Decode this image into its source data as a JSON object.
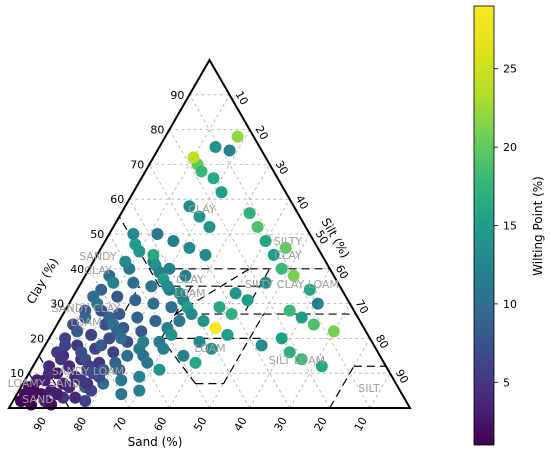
{
  "chart_data": {
    "type": "scatter",
    "subtype": "soil texture ternary diagram",
    "axes": {
      "clay": {
        "label": "Clay (%)",
        "ticks": [
          10,
          20,
          30,
          40,
          50,
          60,
          70,
          80,
          90
        ]
      },
      "silt": {
        "label": "Silt (%)",
        "ticks": [
          10,
          20,
          30,
          40,
          50,
          60,
          70,
          80,
          90
        ]
      },
      "sand": {
        "label": "Sand (%)",
        "ticks": [
          90,
          80,
          70,
          60,
          50,
          40,
          30,
          20,
          10
        ]
      }
    },
    "grid": true,
    "colorbar": {
      "label": "Wilting Point (%)",
      "colormap": "viridis",
      "min": 1,
      "max": 29,
      "ticks": [
        5,
        10,
        15,
        20,
        25
      ],
      "placement": "right"
    },
    "regions": [
      {
        "name": "CLAY",
        "label": "CLAY"
      },
      {
        "name": "SILTY CLAY",
        "label": "SILTY CLAY"
      },
      {
        "name": "SANDY CLAY",
        "label": "SANDY CLAY"
      },
      {
        "name": "CLAY LOAM",
        "label": "CLAY LOAM"
      },
      {
        "name": "SILTY CLAY LOAM",
        "label": "SILTY CLAY LOAM"
      },
      {
        "name": "SANDY CLAY LOAM",
        "label": "SANDY CLAY LOAM"
      },
      {
        "name": "LOAM",
        "label": "LOAM"
      },
      {
        "name": "SILT LOAM",
        "label": "SILT LOAM"
      },
      {
        "name": "SILT",
        "label": "SILT"
      },
      {
        "name": "SANDY LOAM",
        "label": "SANDY LOAM"
      },
      {
        "name": "LOAMY SAND",
        "label": "LOAMY SAND"
      },
      {
        "name": "SAND",
        "label": "SAND"
      }
    ],
    "points": [
      {
        "clay": 3,
        "silt": 4,
        "wp": 2
      },
      {
        "clay": 4,
        "silt": 6,
        "wp": 2
      },
      {
        "clay": 5,
        "silt": 8,
        "wp": 3
      },
      {
        "clay": 6,
        "silt": 3,
        "wp": 2
      },
      {
        "clay": 7,
        "silt": 10,
        "wp": 3
      },
      {
        "clay": 8,
        "silt": 5,
        "wp": 3
      },
      {
        "clay": 9,
        "silt": 12,
        "wp": 4
      },
      {
        "clay": 10,
        "silt": 7,
        "wp": 3
      },
      {
        "clay": 11,
        "silt": 14,
        "wp": 5
      },
      {
        "clay": 12,
        "silt": 9,
        "wp": 4
      },
      {
        "clay": 13,
        "silt": 16,
        "wp": 5
      },
      {
        "clay": 14,
        "silt": 11,
        "wp": 5
      },
      {
        "clay": 15,
        "silt": 6,
        "wp": 4
      },
      {
        "clay": 16,
        "silt": 18,
        "wp": 6
      },
      {
        "clay": 17,
        "silt": 13,
        "wp": 6
      },
      {
        "clay": 18,
        "silt": 8,
        "wp": 5
      },
      {
        "clay": 19,
        "silt": 20,
        "wp": 7
      },
      {
        "clay": 20,
        "silt": 15,
        "wp": 7
      },
      {
        "clay": 21,
        "silt": 10,
        "wp": 6
      },
      {
        "clay": 22,
        "silt": 22,
        "wp": 8
      },
      {
        "clay": 23,
        "silt": 17,
        "wp": 8
      },
      {
        "clay": 24,
        "silt": 12,
        "wp": 7
      },
      {
        "clay": 25,
        "silt": 24,
        "wp": 9
      },
      {
        "clay": 26,
        "silt": 19,
        "wp": 9
      },
      {
        "clay": 27,
        "silt": 14,
        "wp": 8
      },
      {
        "clay": 28,
        "silt": 9,
        "wp": 7
      },
      {
        "clay": 29,
        "silt": 26,
        "wp": 10
      },
      {
        "clay": 30,
        "silt": 21,
        "wp": 10
      },
      {
        "clay": 31,
        "silt": 16,
        "wp": 9
      },
      {
        "clay": 32,
        "silt": 11,
        "wp": 8
      },
      {
        "clay": 34,
        "silt": 23,
        "wp": 11
      },
      {
        "clay": 35,
        "silt": 18,
        "wp": 11
      },
      {
        "clay": 36,
        "silt": 13,
        "wp": 10
      },
      {
        "clay": 38,
        "silt": 25,
        "wp": 12
      },
      {
        "clay": 40,
        "silt": 20,
        "wp": 12
      },
      {
        "clay": 42,
        "silt": 15,
        "wp": 11
      },
      {
        "clay": 44,
        "silt": 27,
        "wp": 13
      },
      {
        "clay": 46,
        "silt": 22,
        "wp": 13
      },
      {
        "clay": 48,
        "silt": 17,
        "wp": 12
      },
      {
        "clay": 50,
        "silt": 12,
        "wp": 11
      },
      {
        "clay": 52,
        "silt": 24,
        "wp": 14
      },
      {
        "clay": 55,
        "silt": 20,
        "wp": 14
      },
      {
        "clay": 58,
        "silt": 16,
        "wp": 13
      },
      {
        "clay": 62,
        "silt": 22,
        "wp": 15
      },
      {
        "clay": 66,
        "silt": 18,
        "wp": 16
      },
      {
        "clay": 70,
        "silt": 12,
        "wp": 20
      },
      {
        "clay": 72,
        "silt": 10,
        "wp": 24
      },
      {
        "clay": 68,
        "silt": 14,
        "wp": 18
      },
      {
        "clay": 75,
        "silt": 14,
        "wp": 14
      },
      {
        "clay": 78,
        "silt": 18,
        "wp": 22
      },
      {
        "clay": 74,
        "silt": 18,
        "wp": 12
      },
      {
        "clay": 56,
        "silt": 32,
        "wp": 17
      },
      {
        "clay": 52,
        "silt": 36,
        "wp": 19
      },
      {
        "clay": 48,
        "silt": 40,
        "wp": 16
      },
      {
        "clay": 46,
        "silt": 46,
        "wp": 20
      },
      {
        "clay": 44,
        "silt": 44,
        "wp": 15
      },
      {
        "clay": 40,
        "silt": 48,
        "wp": 18
      },
      {
        "clay": 38,
        "silt": 52,
        "wp": 21
      },
      {
        "clay": 36,
        "silt": 46,
        "wp": 13
      },
      {
        "clay": 34,
        "silt": 58,
        "wp": 16
      },
      {
        "clay": 30,
        "silt": 62,
        "wp": 12
      },
      {
        "clay": 28,
        "silt": 56,
        "wp": 18
      },
      {
        "clay": 26,
        "silt": 60,
        "wp": 15
      },
      {
        "clay": 24,
        "silt": 64,
        "wp": 19
      },
      {
        "clay": 22,
        "silt": 70,
        "wp": 21
      },
      {
        "clay": 20,
        "silt": 58,
        "wp": 15
      },
      {
        "clay": 18,
        "silt": 54,
        "wp": 13
      },
      {
        "clay": 16,
        "silt": 62,
        "wp": 17
      },
      {
        "clay": 14,
        "silt": 66,
        "wp": 18
      },
      {
        "clay": 12,
        "silt": 72,
        "wp": 16
      },
      {
        "clay": 33,
        "silt": 40,
        "wp": 14
      },
      {
        "clay": 31,
        "silt": 44,
        "wp": 15
      },
      {
        "clay": 29,
        "silt": 38,
        "wp": 16
      },
      {
        "clay": 27,
        "silt": 42,
        "wp": 17
      },
      {
        "clay": 25,
        "silt": 36,
        "wp": 14
      },
      {
        "clay": 23,
        "silt": 40,
        "wp": 29
      },
      {
        "clay": 21,
        "silt": 44,
        "wp": 15
      },
      {
        "clay": 19,
        "silt": 38,
        "wp": 13
      },
      {
        "clay": 17,
        "silt": 42,
        "wp": 14
      },
      {
        "clay": 15,
        "silt": 36,
        "wp": 12
      },
      {
        "clay": 13,
        "silt": 40,
        "wp": 16
      },
      {
        "clay": 11,
        "silt": 32,
        "wp": 14
      },
      {
        "clay": 9,
        "silt": 28,
        "wp": 12
      },
      {
        "clay": 8,
        "silt": 24,
        "wp": 11
      },
      {
        "clay": 7,
        "silt": 20,
        "wp": 10
      },
      {
        "clay": 6,
        "silt": 16,
        "wp": 9
      },
      {
        "clay": 5,
        "silt": 30,
        "wp": 12
      },
      {
        "clay": 4,
        "silt": 26,
        "wp": 11
      },
      {
        "clay": 3,
        "silt": 12,
        "wp": 5
      },
      {
        "clay": 2,
        "silt": 8,
        "wp": 3
      },
      {
        "clay": 2,
        "silt": 18,
        "wp": 6
      },
      {
        "clay": 1,
        "silt": 5,
        "wp": 1
      },
      {
        "clay": 1,
        "silt": 10,
        "wp": 2
      },
      {
        "clay": 2,
        "silt": 2,
        "wp": 1
      },
      {
        "clay": 3,
        "silt": 15,
        "wp": 4
      },
      {
        "clay": 40,
        "silt": 10,
        "wp": 11
      },
      {
        "clay": 42,
        "silt": 8,
        "wp": 13
      },
      {
        "clay": 38,
        "silt": 6,
        "wp": 10
      },
      {
        "clay": 36,
        "silt": 8,
        "wp": 12
      },
      {
        "clay": 34,
        "silt": 6,
        "wp": 9
      },
      {
        "clay": 32,
        "silt": 5,
        "wp": 10
      },
      {
        "clay": 30,
        "silt": 7,
        "wp": 11
      },
      {
        "clay": 28,
        "silt": 5,
        "wp": 8
      },
      {
        "clay": 26,
        "silt": 6,
        "wp": 9
      },
      {
        "clay": 24,
        "silt": 4,
        "wp": 7
      },
      {
        "clay": 22,
        "silt": 6,
        "wp": 8
      },
      {
        "clay": 20,
        "silt": 4,
        "wp": 6
      },
      {
        "clay": 18,
        "silt": 5,
        "wp": 6
      },
      {
        "clay": 16,
        "silt": 4,
        "wp": 5
      },
      {
        "clay": 14,
        "silt": 6,
        "wp": 5
      },
      {
        "clay": 12,
        "silt": 4,
        "wp": 4
      },
      {
        "clay": 10,
        "silt": 5,
        "wp": 4
      },
      {
        "clay": 8,
        "silt": 3,
        "wp": 3
      },
      {
        "clay": 6,
        "silt": 2,
        "wp": 2
      },
      {
        "clay": 4,
        "silt": 2,
        "wp": 2
      },
      {
        "clay": 45,
        "silt": 10,
        "wp": 14
      },
      {
        "clay": 47,
        "silt": 8,
        "wp": 15
      },
      {
        "clay": 50,
        "silt": 6,
        "wp": 13
      },
      {
        "clay": 44,
        "silt": 14,
        "wp": 16
      },
      {
        "clay": 41,
        "silt": 16,
        "wp": 14
      },
      {
        "clay": 39,
        "silt": 18,
        "wp": 12
      },
      {
        "clay": 37,
        "silt": 20,
        "wp": 15
      },
      {
        "clay": 35,
        "silt": 22,
        "wp": 13
      },
      {
        "clay": 33,
        "silt": 26,
        "wp": 14
      },
      {
        "clay": 31,
        "silt": 28,
        "wp": 12
      },
      {
        "clay": 29,
        "silt": 30,
        "wp": 15
      },
      {
        "clay": 27,
        "silt": 32,
        "wp": 13
      },
      {
        "clay": 25,
        "silt": 30,
        "wp": 11
      },
      {
        "clay": 23,
        "silt": 28,
        "wp": 12
      },
      {
        "clay": 21,
        "silt": 30,
        "wp": 14
      },
      {
        "clay": 19,
        "silt": 28,
        "wp": 11
      },
      {
        "clay": 17,
        "silt": 30,
        "wp": 12
      },
      {
        "clay": 15,
        "silt": 26,
        "wp": 10
      },
      {
        "clay": 13,
        "silt": 28,
        "wp": 11
      },
      {
        "clay": 11,
        "silt": 22,
        "wp": 9
      },
      {
        "clay": 26,
        "silt": 12,
        "wp": 9
      },
      {
        "clay": 24,
        "silt": 14,
        "wp": 10
      },
      {
        "clay": 22,
        "silt": 16,
        "wp": 9
      },
      {
        "clay": 20,
        "silt": 18,
        "wp": 10
      },
      {
        "clay": 18,
        "silt": 14,
        "wp": 8
      },
      {
        "clay": 16,
        "silt": 10,
        "wp": 7
      },
      {
        "clay": 14,
        "silt": 12,
        "wp": 7
      },
      {
        "clay": 12,
        "silt": 14,
        "wp": 6
      },
      {
        "clay": 10,
        "silt": 16,
        "wp": 7
      },
      {
        "clay": 8,
        "silt": 14,
        "wp": 5
      },
      {
        "clay": 6,
        "silt": 12,
        "wp": 4
      },
      {
        "clay": 4,
        "silt": 10,
        "wp": 3
      },
      {
        "clay": 5,
        "silt": 18,
        "wp": 6
      },
      {
        "clay": 7,
        "silt": 16,
        "wp": 5
      },
      {
        "clay": 9,
        "silt": 18,
        "wp": 7
      },
      {
        "clay": 11,
        "silt": 18,
        "wp": 8
      },
      {
        "clay": 13,
        "silt": 20,
        "wp": 9
      },
      {
        "clay": 15,
        "silt": 22,
        "wp": 10
      },
      {
        "clay": 17,
        "silt": 24,
        "wp": 11
      },
      {
        "clay": 19,
        "silt": 24,
        "wp": 12
      }
    ]
  }
}
